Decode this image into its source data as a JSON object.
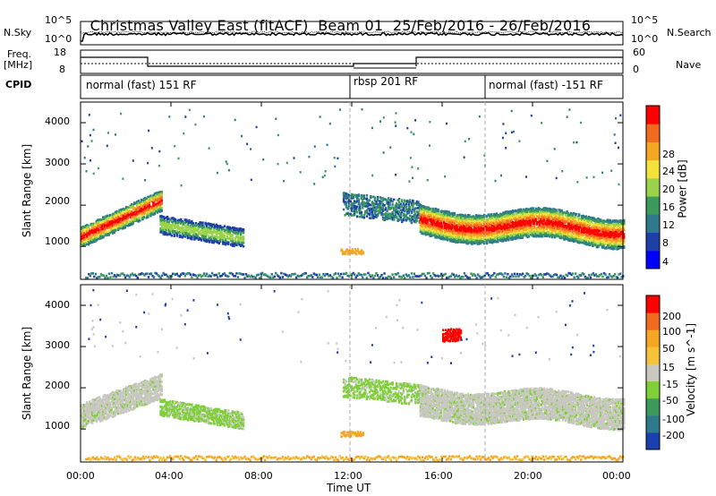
{
  "header": {
    "title": "Christmas Valley East (fitACF)",
    "beam": "Beam 01",
    "dates": "25/Feb/2016 - 26/Feb/2016"
  },
  "top_panels": {
    "nsky_label": "N.Sky",
    "nsearch_label": "N.Search",
    "freq_label": "Freq.",
    "freq_unit": "[MHz]",
    "nave_label": "Nave",
    "cpid_label": "CPID",
    "noise_ticks_left": [
      "10^5",
      "10^0"
    ],
    "noise_ticks_right": [
      "10^5",
      "10^0"
    ],
    "freq_ticks": [
      "18",
      "8"
    ],
    "nave_ticks": [
      "60",
      "0"
    ]
  },
  "cpid_segments": [
    {
      "label": "normal (fast) 151 RF",
      "start": 0,
      "end": 12
    },
    {
      "label": "rbsp 201 RF",
      "start": 12,
      "end": 18
    },
    {
      "label": "normal (fast) -151 RF",
      "start": 18,
      "end": 24
    }
  ],
  "axes": {
    "ylabel": "Slant Range [km]",
    "xlabel": "Time UT",
    "x_ticks": [
      "00:00",
      "04:00",
      "08:00",
      "12:00",
      "16:00",
      "20:00",
      "00:00"
    ],
    "y_ticks": [
      "1000",
      "2000",
      "3000",
      "4000"
    ]
  },
  "colorbars": {
    "power": {
      "label": "Power [dB]",
      "ticks": [
        "28",
        "24",
        "20",
        "16",
        "12",
        "8",
        "4"
      ],
      "colors": [
        "#0000ff",
        "#1f3fa8",
        "#2e7a8c",
        "#3c9a5a",
        "#9ad24a",
        "#f2e23a",
        "#f5a623",
        "#f26a1f",
        "#ff0000"
      ]
    },
    "velocity": {
      "label": "Velocity [m s^-1]",
      "ticks": [
        "200",
        "100",
        "50",
        "15",
        "-15",
        "-50",
        "-100",
        "-200"
      ],
      "colors": [
        "#1a3fb0",
        "#2e7a8c",
        "#3c9a5a",
        "#7fcf3a",
        "#c8c8c0",
        "#f5c23a",
        "#f5a623",
        "#f26a1f",
        "#ff0000"
      ]
    }
  },
  "chart_data": [
    {
      "type": "heatmap",
      "title": "Power",
      "xlabel": "Time UT",
      "ylabel": "Slant Range [km]",
      "xlim": [
        0,
        24
      ],
      "ylim": [
        200,
        4500
      ],
      "colorbar": "Power [dB]",
      "features": [
        {
          "t0": 0.0,
          "t1": 3.5,
          "r": 1300,
          "note": "strong band"
        },
        {
          "t0": 3.5,
          "t1": 7.2,
          "r": 1350
        },
        {
          "t0": 11.6,
          "t1": 15.0,
          "r": 1900
        },
        {
          "t0": 15.0,
          "t1": 24.0,
          "r": 1500,
          "note": "strong band"
        }
      ]
    },
    {
      "type": "heatmap",
      "title": "Velocity",
      "xlabel": "Time UT",
      "ylabel": "Slant Range [km]",
      "xlim": [
        0,
        24
      ],
      "ylim": [
        200,
        4500
      ],
      "colorbar": "Velocity [m s^-1]"
    }
  ]
}
